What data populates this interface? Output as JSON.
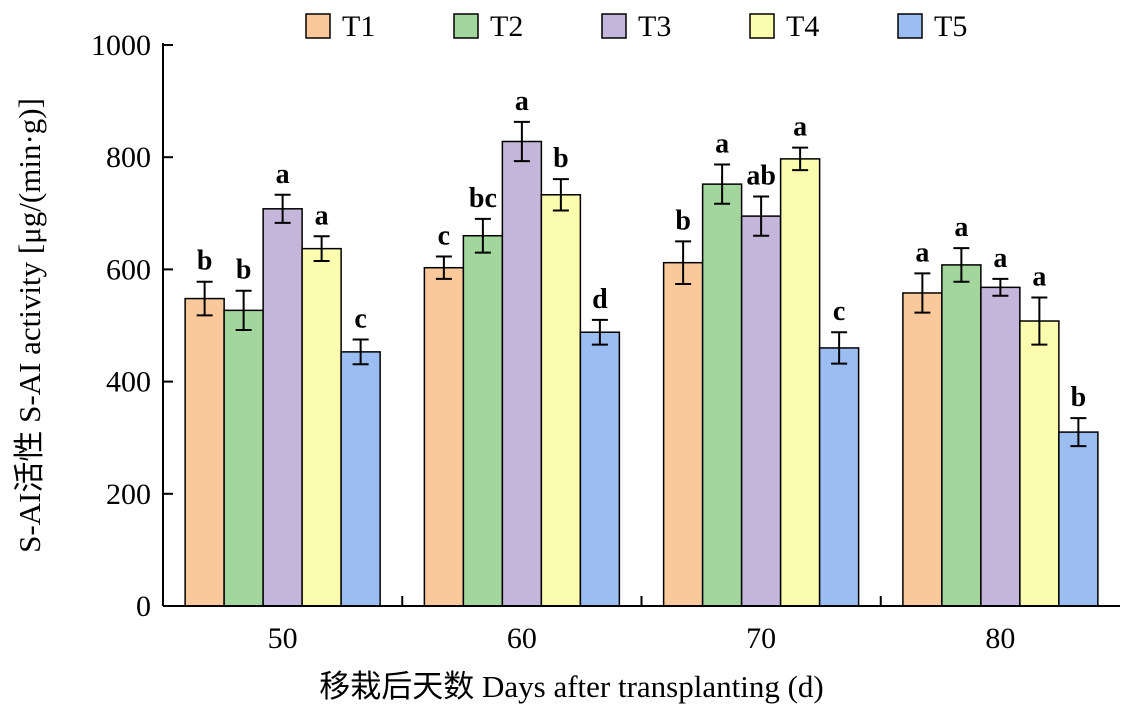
{
  "chart_data": {
    "type": "bar",
    "title": "",
    "xlabel": "移栽后天数 Days after transplanting (d)",
    "ylabel": "S-AI活性 S-AI activity [μg/(min·g)]",
    "ylim": [
      0,
      1000
    ],
    "yticks": [
      "0",
      "200",
      "400",
      "600",
      "800",
      "1000"
    ],
    "categories": [
      "50",
      "60",
      "70",
      "80"
    ],
    "legend_position": "top",
    "series": [
      {
        "name": "T1",
        "color": "#F9C99B",
        "values": [
          548,
          603,
          612,
          558
        ],
        "errors": [
          30,
          20,
          38,
          35
        ],
        "letters": [
          "b",
          "c",
          "b",
          "a"
        ]
      },
      {
        "name": "T2",
        "color": "#A3D69C",
        "values": [
          527,
          660,
          752,
          608
        ],
        "errors": [
          35,
          30,
          35,
          30
        ],
        "letters": [
          "b",
          "bc",
          "a",
          "a"
        ]
      },
      {
        "name": "T3",
        "color": "#C4B5DA",
        "values": [
          708,
          828,
          695,
          568
        ],
        "errors": [
          25,
          35,
          35,
          15
        ],
        "letters": [
          "a",
          "a",
          "ab",
          "a"
        ]
      },
      {
        "name": "T4",
        "color": "#FCFCAE",
        "values": [
          637,
          733,
          797,
          508
        ],
        "errors": [
          22,
          28,
          20,
          42
        ],
        "letters": [
          "a",
          "b",
          "a",
          "a"
        ]
      },
      {
        "name": "T5",
        "color": "#9BBDF1",
        "values": [
          453,
          488,
          460,
          310
        ],
        "errors": [
          22,
          22,
          28,
          25
        ],
        "letters": [
          "c",
          "d",
          "c",
          "b"
        ]
      }
    ]
  }
}
